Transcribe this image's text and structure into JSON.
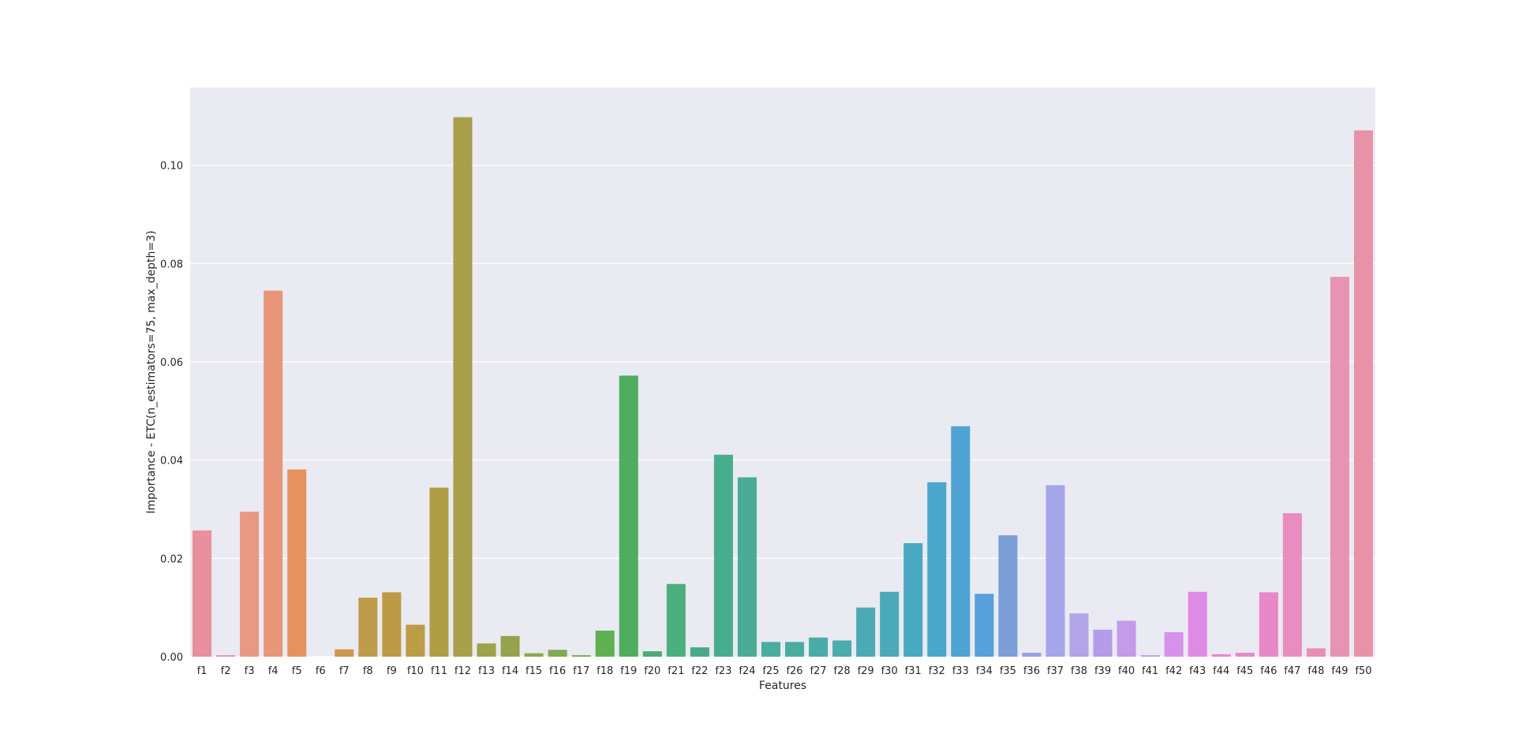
{
  "chart_data": {
    "type": "bar",
    "xlabel": "Features",
    "ylabel": "Importance - ETC(n_estimators=75, max_depth=3)",
    "ylim": [
      0,
      0.115
    ],
    "yticks": [
      "0.00",
      "0.02",
      "0.04",
      "0.06",
      "0.08",
      "0.10"
    ],
    "grid": true,
    "categories": [
      "f1",
      "f2",
      "f3",
      "f4",
      "f5",
      "f6",
      "f7",
      "f8",
      "f9",
      "f10",
      "f11",
      "f12",
      "f13",
      "f14",
      "f15",
      "f16",
      "f17",
      "f18",
      "f19",
      "f20",
      "f21",
      "f22",
      "f23",
      "f24",
      "f25",
      "f26",
      "f27",
      "f28",
      "f29",
      "f30",
      "f31",
      "f32",
      "f33",
      "f34",
      "f35",
      "f36",
      "f37",
      "f38",
      "f39",
      "f40",
      "f41",
      "f42",
      "f43",
      "f44",
      "f45",
      "f46",
      "f47",
      "f48",
      "f49",
      "f50"
    ],
    "values": [
      0.0257,
      0.0003,
      0.0295,
      0.0745,
      0.0381,
      0.0,
      0.0015,
      0.012,
      0.0131,
      0.0065,
      0.0344,
      0.1098,
      0.0027,
      0.0042,
      0.0007,
      0.0014,
      0.0003,
      0.0053,
      0.0572,
      0.0011,
      0.0148,
      0.0019,
      0.0411,
      0.0365,
      0.003,
      0.003,
      0.0039,
      0.0033,
      0.01,
      0.0132,
      0.0231,
      0.0355,
      0.0469,
      0.0128,
      0.0247,
      0.0008,
      0.0349,
      0.0088,
      0.0055,
      0.0073,
      0.0003,
      0.005,
      0.0132,
      0.0005,
      0.0008,
      0.0131,
      0.0292,
      0.0017,
      0.0773,
      0.1071
    ],
    "colors": [
      "#e8909d",
      "#e8959b",
      "#e99883",
      "#e89579",
      "#e5935e",
      "#d59a5a",
      "#cc9a4c",
      "#be9b4a",
      "#bd9b46",
      "#bc9c45",
      "#b09e47",
      "#a8a04a",
      "#9fa248",
      "#97a34c",
      "#8ea84d",
      "#80ab50",
      "#72ae50",
      "#5eb153",
      "#4fad5f",
      "#4cab75",
      "#4caf7e",
      "#47ab88",
      "#48ad8c",
      "#4aac96",
      "#4aac9f",
      "#49aca3",
      "#4aaca8",
      "#4bacad",
      "#4aaab5",
      "#4aa9ba",
      "#49a9c3",
      "#4aa6cb",
      "#4ea3d2",
      "#58a0da",
      "#7b9ed9",
      "#9aa0e3",
      "#a5a5ea",
      "#b1a4e7",
      "#b39ce8",
      "#c29be9",
      "#cd97e8",
      "#d592e8",
      "#de8be5",
      "#e388d7",
      "#e589ce",
      "#e888c8",
      "#e98dc1",
      "#e88eb5",
      "#e893b2",
      "#e892a7"
    ]
  }
}
